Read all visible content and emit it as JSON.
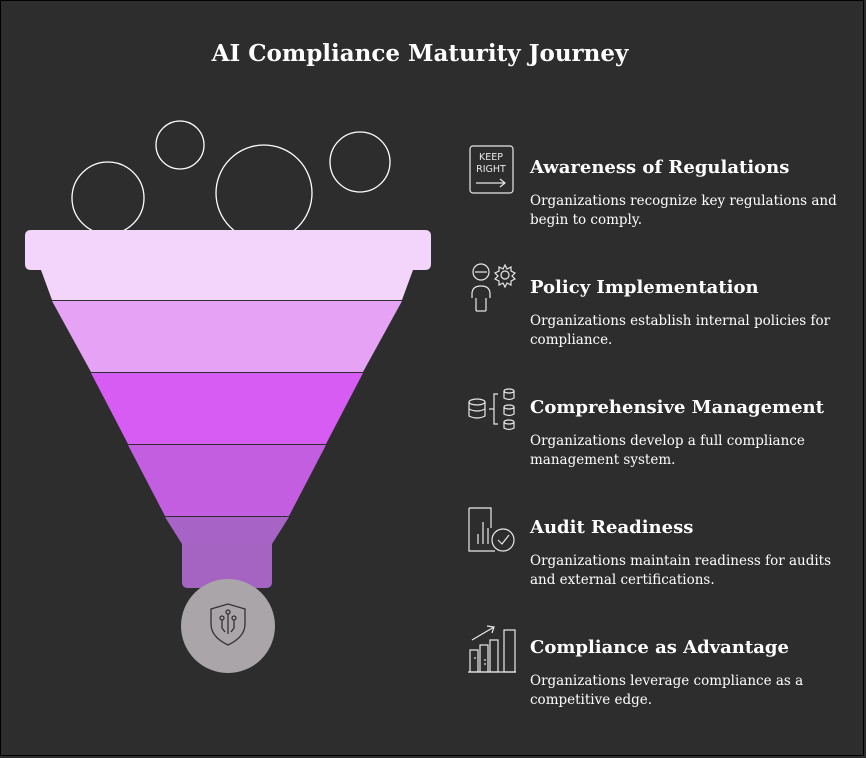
{
  "title": "AI Compliance Maturity Journey",
  "colors": {
    "background": "#2d2d2d",
    "layer1": "#f3d4fb",
    "layer2": "#e6a3f6",
    "layer3": "#d65cf4",
    "layer4": "#c35ee0",
    "layer5": "#a763c6",
    "spout": "#a563c2",
    "base_circle": "#aaa5a8"
  },
  "icons": {
    "keep_right_top": "KEEP",
    "keep_right_bottom": "RIGHT"
  },
  "stages": [
    {
      "icon": "keep-right-sign-icon",
      "heading": "Awareness of Regulations",
      "description": "Organizations recognize key regulations and begin to comply."
    },
    {
      "icon": "person-gear-icon",
      "heading": "Policy Implementation",
      "description": "Organizations establish internal policies for compliance."
    },
    {
      "icon": "database-network-icon",
      "heading": "Comprehensive Management",
      "description": "Organizations develop a full compliance management system."
    },
    {
      "icon": "document-check-icon",
      "heading": "Audit Readiness",
      "description": "Organizations maintain readiness for audits and external certifications."
    },
    {
      "icon": "growth-chart-icon",
      "heading": "Compliance as Advantage",
      "description": "Organizations leverage compliance as a competitive edge."
    }
  ]
}
